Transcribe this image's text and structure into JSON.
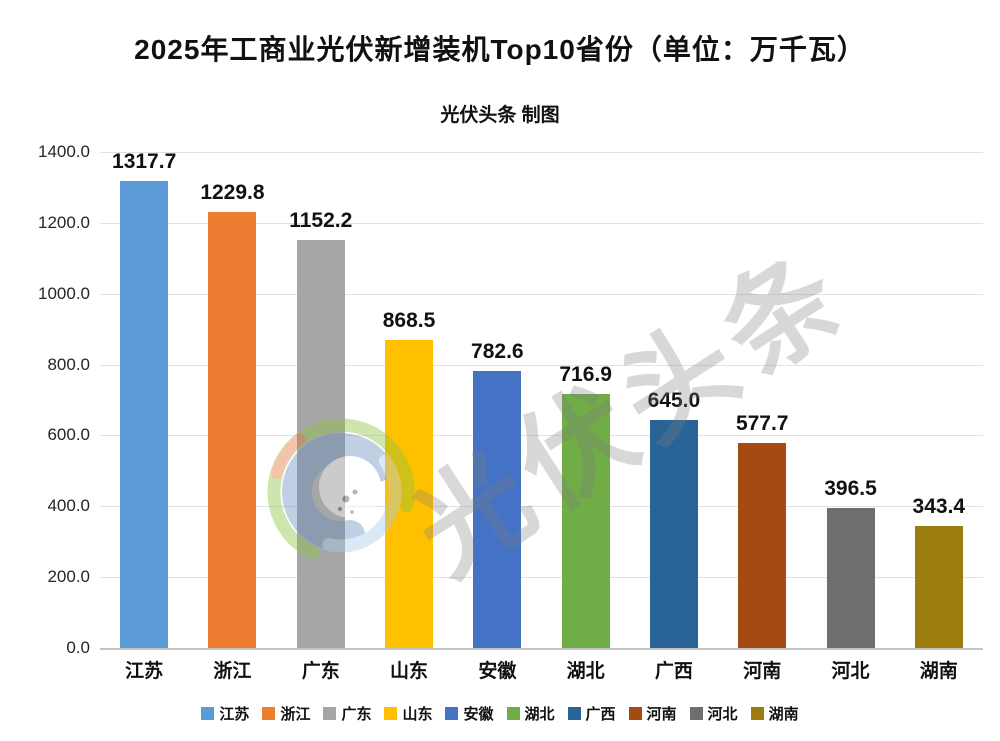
{
  "header": {
    "title": "2025年工商业光伏新增装机Top10省份（单位：万千瓦）",
    "subtitle": "光伏头条 制图"
  },
  "watermark": {
    "text": "光伏头条",
    "logo": "pv-headlines-swirl-logo"
  },
  "chart_data": {
    "type": "bar",
    "title": "2025年工商业光伏新增装机Top10省份（单位：万千瓦）",
    "subtitle": "光伏头条 制图",
    "categories": [
      "江苏",
      "浙江",
      "广东",
      "山东",
      "安徽",
      "湖北",
      "广西",
      "河南",
      "河北",
      "湖南"
    ],
    "values": [
      1317.7,
      1229.8,
      1152.2,
      868.5,
      782.6,
      716.9,
      645.0,
      577.7,
      396.5,
      343.4
    ],
    "value_labels": [
      "1317.7",
      "1229.8",
      "1152.2",
      "868.5",
      "782.6",
      "716.9",
      "645.0",
      "577.7",
      "396.5",
      "343.4"
    ],
    "bar_colors": [
      "#5B9BD5",
      "#ED7D31",
      "#A6A6A6",
      "#FFC000",
      "#4472C4",
      "#70AD47",
      "#2A6497",
      "#A54A12",
      "#6E6E6E",
      "#9B7C0D"
    ],
    "xlabel": "",
    "ylabel": "",
    "ylim": [
      0,
      1400
    ],
    "ytick_step": 200,
    "ytick_labels": [
      "0.0",
      "200.0",
      "400.0",
      "600.0",
      "800.0",
      "1000.0",
      "1200.0",
      "1400.0"
    ],
    "grid": true,
    "legend_position": "bottom",
    "legend_entries": [
      "江苏",
      "浙江",
      "广东",
      "山东",
      "安徽",
      "湖北",
      "广西",
      "河南",
      "河北",
      "湖南"
    ]
  }
}
